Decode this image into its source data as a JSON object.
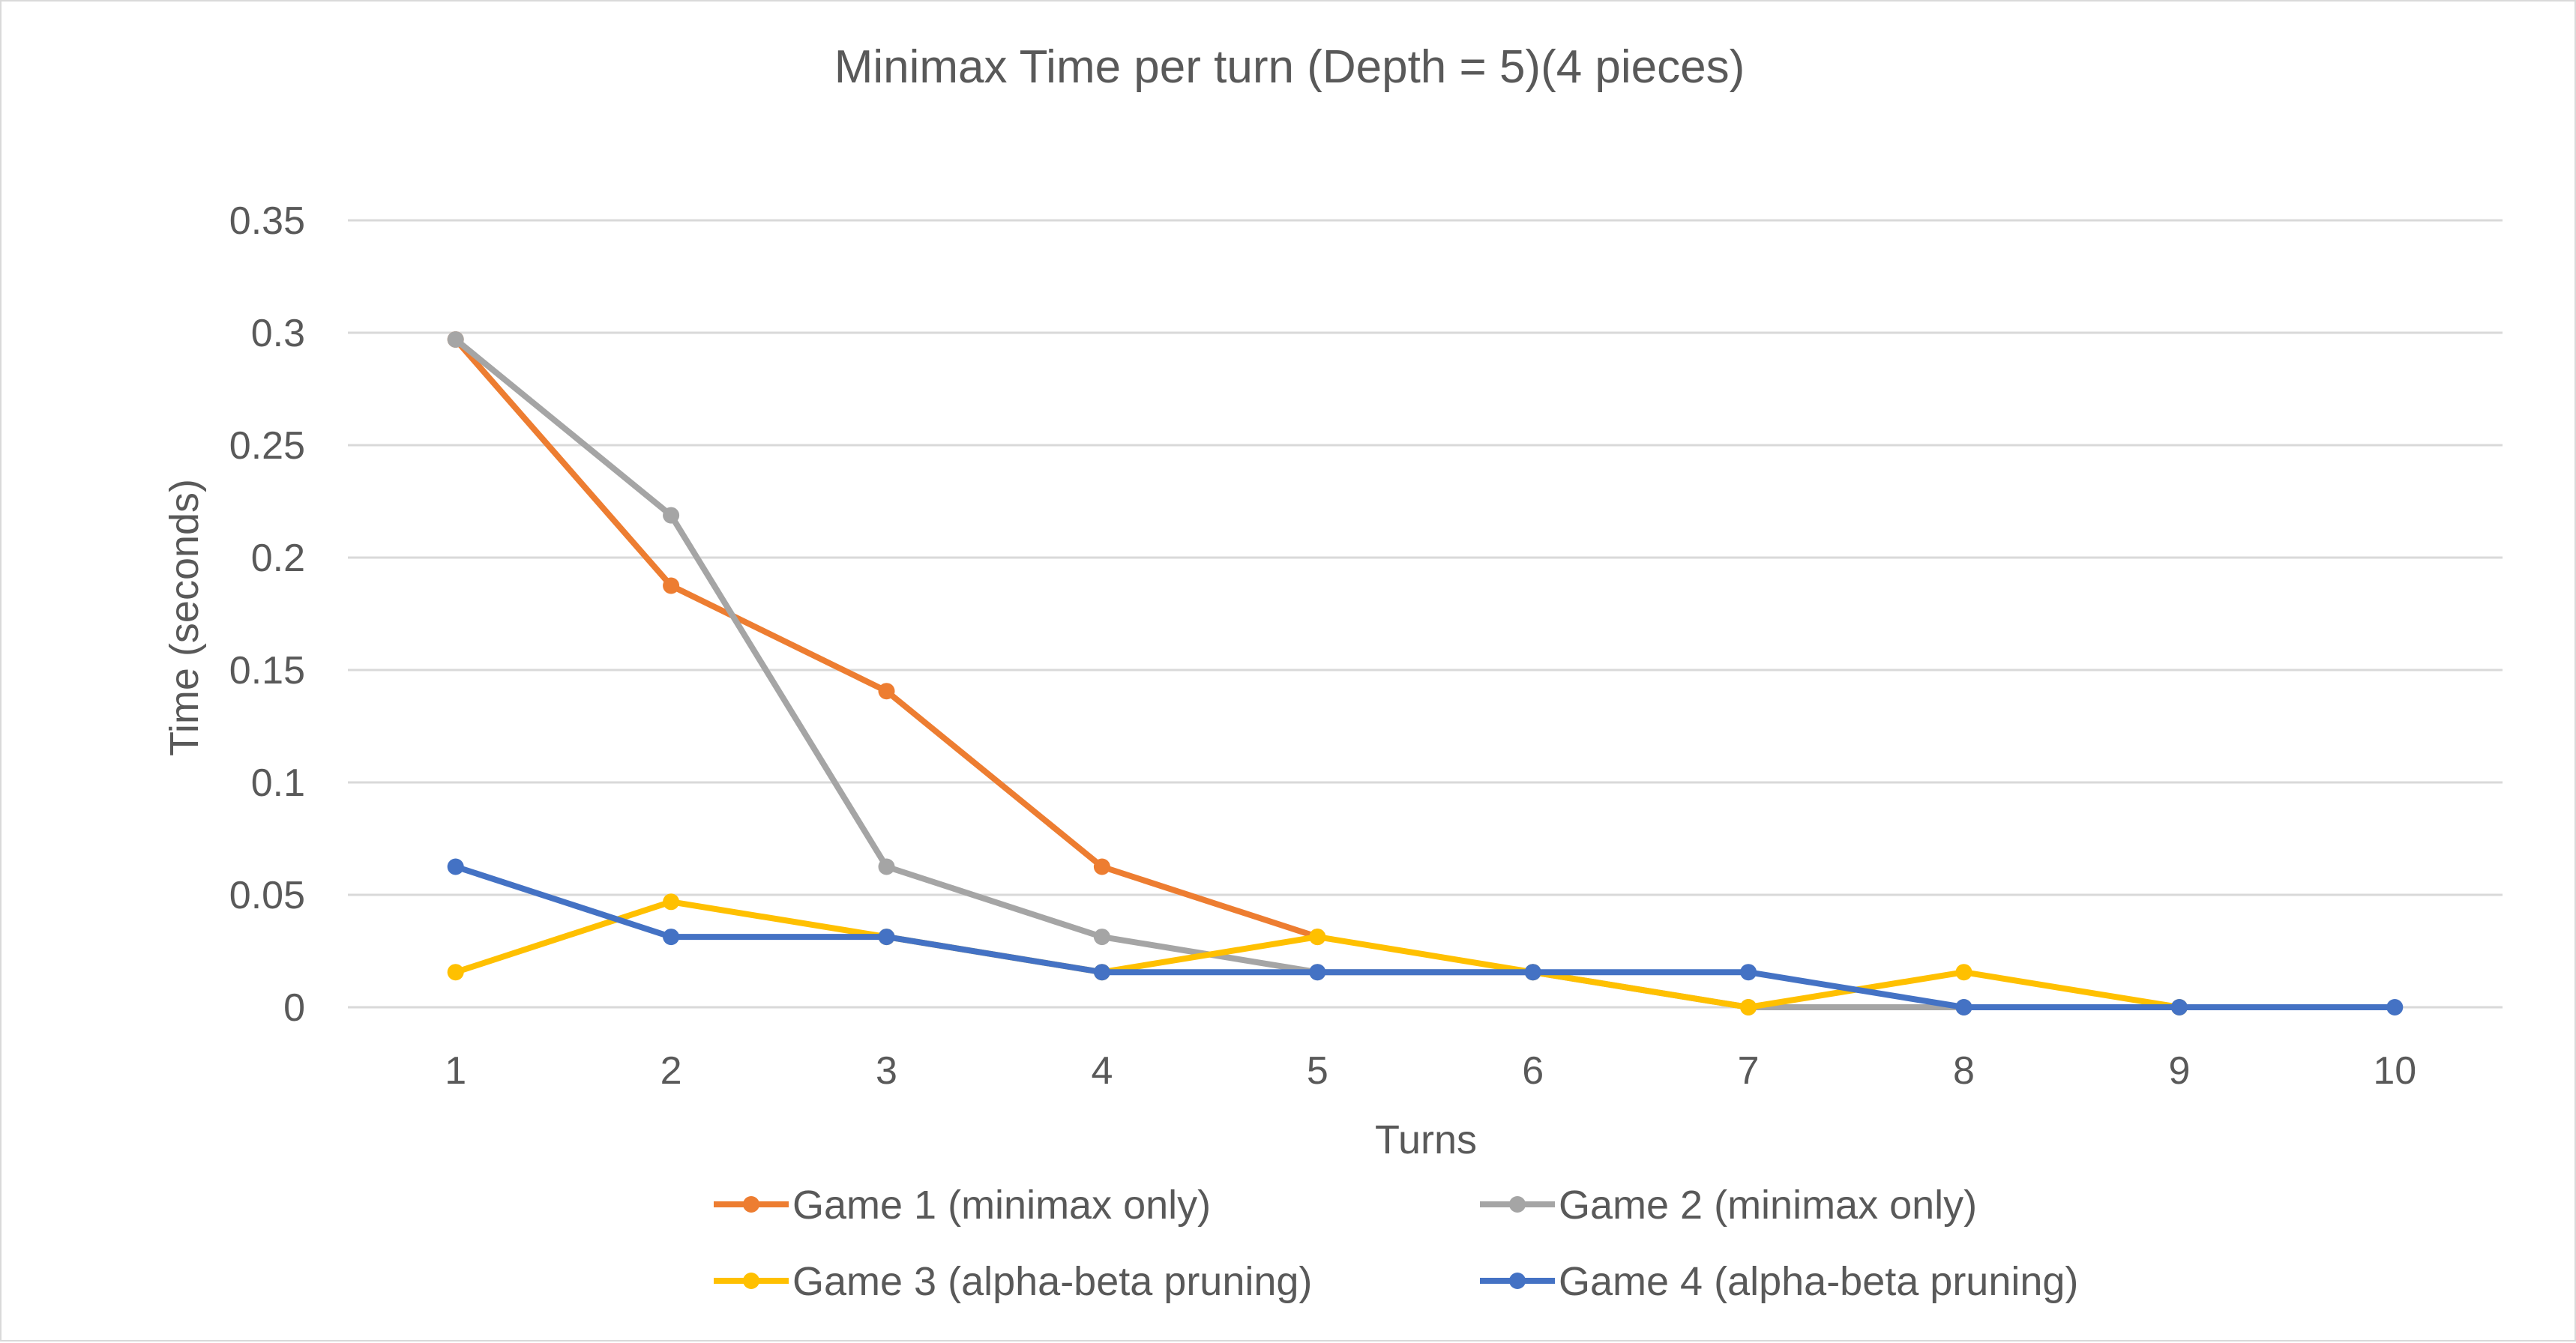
{
  "chart_data": {
    "type": "line",
    "title": "Minimax Time per turn (Depth = 5)(4 pieces)",
    "xlabel": "Turns",
    "ylabel": "Time (seconds)",
    "x": [
      1,
      2,
      3,
      4,
      5,
      6,
      7,
      8,
      9,
      10
    ],
    "x_tick_labels": [
      "1",
      "2",
      "3",
      "4",
      "5",
      "6",
      "7",
      "8",
      "9",
      "10"
    ],
    "ylim": [
      0,
      0.35
    ],
    "y_ticks": [
      0,
      0.05,
      0.1,
      0.15,
      0.2,
      0.25,
      0.3,
      0.35
    ],
    "y_tick_labels": [
      "0",
      "0.05",
      "0.1",
      "0.15",
      "0.2",
      "0.25",
      "0.3",
      "0.35"
    ],
    "grid": true,
    "legend_position": "bottom",
    "series": [
      {
        "name": "Game 1 (minimax only)",
        "color": "#ED7D31",
        "x": [
          1,
          2,
          3,
          4,
          5
        ],
        "values": [
          0.297,
          0.1875,
          0.1406,
          0.0625,
          0.0313
        ]
      },
      {
        "name": "Game 2 (minimax only)",
        "color": "#A5A5A5",
        "x": [
          1,
          2,
          3,
          4,
          5,
          6,
          7,
          8
        ],
        "values": [
          0.297,
          0.2188,
          0.0625,
          0.0313,
          0.0156,
          0.0156,
          0,
          0
        ]
      },
      {
        "name": "Game 3 (alpha-beta pruning)",
        "color": "#FFC000",
        "x": [
          1,
          2,
          3,
          4,
          5,
          6,
          7,
          8,
          9
        ],
        "values": [
          0.0156,
          0.0469,
          0.0313,
          0.0156,
          0.0313,
          0.0156,
          0,
          0.0156,
          0
        ]
      },
      {
        "name": "Game 4 (alpha-beta pruning)",
        "color": "#4472C4",
        "x": [
          1,
          2,
          3,
          4,
          5,
          6,
          7,
          8,
          9,
          10
        ],
        "values": [
          0.0625,
          0.0313,
          0.0313,
          0.0156,
          0.0156,
          0.0156,
          0.0156,
          0,
          0,
          0
        ]
      }
    ]
  }
}
